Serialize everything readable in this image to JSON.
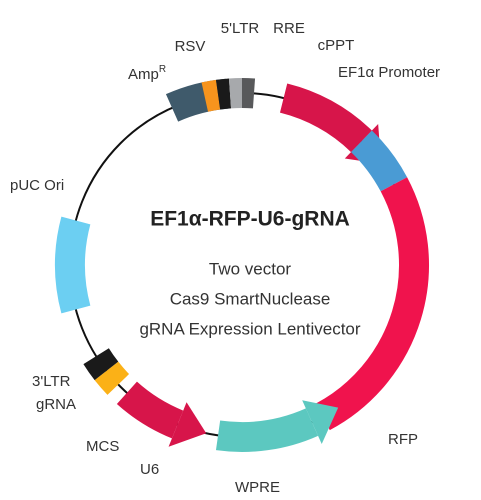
{
  "title": "EF1α-RFP-U6-gRNA",
  "subtitle": [
    "Two vector",
    "Cas9 SmartNuclease",
    "gRNA Expression Lentivector"
  ],
  "labels": {
    "rsv": "RSV",
    "ltr5": "5'LTR",
    "rre": "RRE",
    "cppt": "cPPT",
    "amp": "Amp",
    "amp_sup": "R",
    "ef1a": "EF1α Promoter",
    "puc": "pUC Ori",
    "ltr3": "3'LTR",
    "grna": "gRNA",
    "mcs": "MCS",
    "u6": "U6",
    "wpre": "WPRE",
    "rfp": "RFP"
  }
}
